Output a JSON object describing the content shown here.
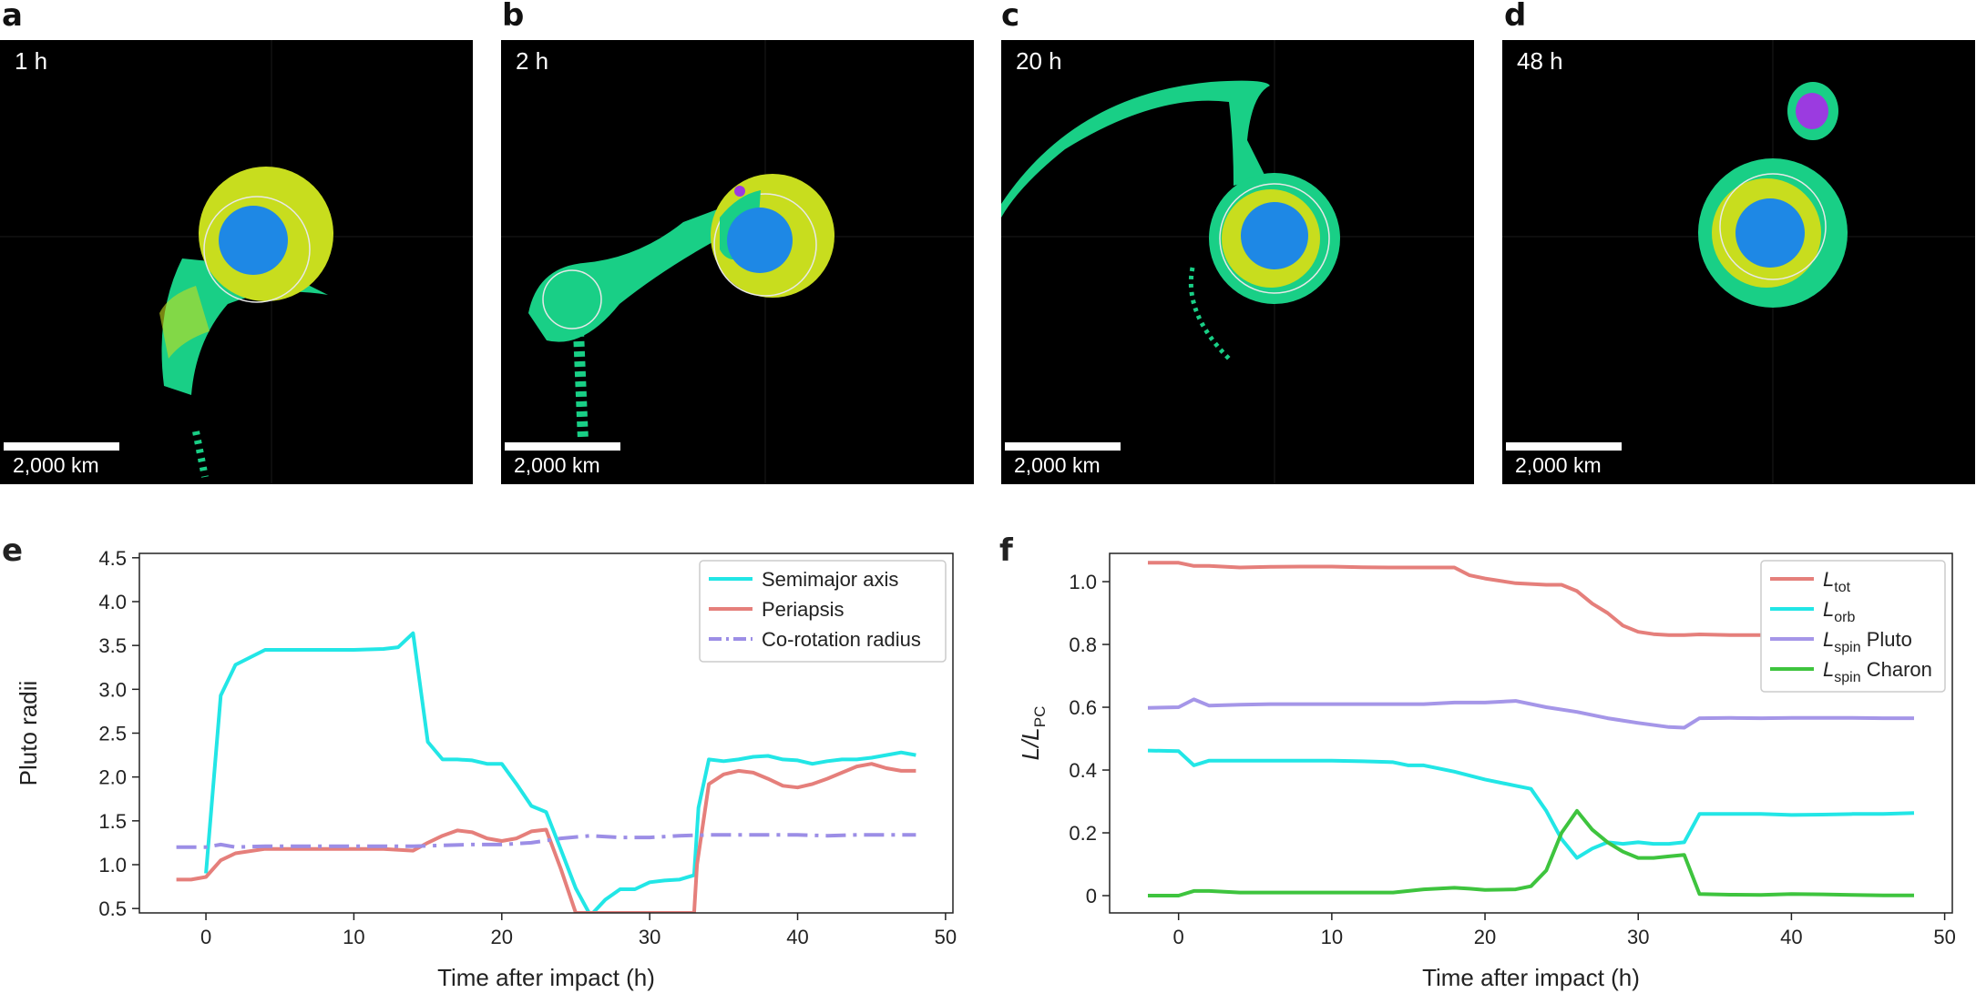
{
  "panels": [
    {
      "letter": "a",
      "time": "1 h",
      "scale": "2,000 km"
    },
    {
      "letter": "b",
      "time": "2 h",
      "scale": "2,000 km"
    },
    {
      "letter": "c",
      "time": "20 h",
      "scale": "2,000 km"
    },
    {
      "letter": "d",
      "time": "48 h",
      "scale": "2,000 km"
    }
  ],
  "sim_colors": {
    "background": "#000000",
    "core": "#1e88e5",
    "mantle": "#c8dd1e",
    "ice": "#19cf86",
    "rock": "#9b3be0"
  },
  "chart_data": [
    {
      "panel": "e",
      "type": "line",
      "xlabel": "Time after impact (h)",
      "ylabel": "Pluto radii",
      "xlim": [
        -4.5,
        50.5
      ],
      "ylim": [
        0.45,
        4.55
      ],
      "xticks": [
        0,
        10,
        20,
        30,
        40,
        50
      ],
      "xtick_labels": [
        "0",
        "10",
        "20",
        "30",
        "40",
        "50"
      ],
      "yticks": [
        0.5,
        1.0,
        1.5,
        2.0,
        2.5,
        3.0,
        3.5,
        4.0,
        4.5
      ],
      "ytick_labels": [
        "0.5",
        "1.0",
        "1.5",
        "2.0",
        "2.5",
        "3.0",
        "3.5",
        "4.0",
        "4.5"
      ],
      "legend": "top-right",
      "grid": false,
      "series": [
        {
          "name": "Semimajor axis",
          "color": "#22e6e6",
          "dash": "solid",
          "x": [
            0,
            1,
            2,
            4,
            6,
            8,
            10,
            12,
            13,
            14,
            15,
            16,
            17,
            18,
            19,
            20,
            21,
            22,
            23,
            24,
            25,
            26,
            27,
            28,
            29,
            30,
            31,
            32,
            33,
            33.3,
            34,
            35,
            36,
            37,
            38,
            39,
            40,
            41,
            42,
            43,
            44,
            45,
            46,
            47,
            48
          ],
          "y": [
            0.9,
            2.93,
            3.28,
            3.45,
            3.45,
            3.45,
            3.45,
            3.46,
            3.48,
            3.64,
            2.4,
            2.2,
            2.2,
            2.19,
            2.15,
            2.15,
            1.92,
            1.67,
            1.6,
            1.17,
            0.73,
            0.42,
            0.6,
            0.72,
            0.72,
            0.8,
            0.82,
            0.83,
            0.88,
            1.65,
            2.2,
            2.18,
            2.2,
            2.23,
            2.24,
            2.2,
            2.19,
            2.15,
            2.18,
            2.2,
            2.2,
            2.22,
            2.25,
            2.28,
            2.25
          ]
        },
        {
          "name": "Periapsis",
          "color": "#e57f7b",
          "dash": "solid",
          "x": [
            -2,
            -1,
            0,
            1,
            2,
            4,
            6,
            8,
            10,
            12,
            14,
            15,
            16,
            17,
            18,
            19,
            20,
            21,
            22,
            23,
            24,
            25,
            33,
            33.2,
            34,
            35,
            36,
            37,
            38,
            39,
            40,
            41,
            42,
            43,
            44,
            45,
            46,
            47,
            48
          ],
          "y": [
            0.83,
            0.83,
            0.86,
            1.05,
            1.13,
            1.18,
            1.18,
            1.18,
            1.18,
            1.18,
            1.16,
            1.25,
            1.33,
            1.39,
            1.37,
            1.3,
            1.27,
            1.3,
            1.38,
            1.4,
            0.95,
            0.45,
            0.45,
            1.0,
            1.92,
            2.03,
            2.07,
            2.05,
            1.98,
            1.9,
            1.88,
            1.92,
            1.98,
            2.05,
            2.12,
            2.15,
            2.1,
            2.07,
            2.07
          ]
        },
        {
          "name": "Co-rotation radius",
          "color": "#9c8ee6",
          "dash": "dashdot",
          "x": [
            -2,
            0,
            1,
            2,
            4,
            6,
            8,
            10,
            12,
            14,
            16,
            18,
            20,
            22,
            24,
            26,
            28,
            30,
            32,
            34,
            36,
            38,
            40,
            42,
            44,
            46,
            48
          ],
          "y": [
            1.2,
            1.2,
            1.23,
            1.2,
            1.21,
            1.21,
            1.21,
            1.21,
            1.21,
            1.21,
            1.22,
            1.23,
            1.23,
            1.25,
            1.3,
            1.33,
            1.31,
            1.31,
            1.33,
            1.34,
            1.34,
            1.34,
            1.34,
            1.33,
            1.34,
            1.34,
            1.34
          ]
        }
      ]
    },
    {
      "panel": "f",
      "type": "line",
      "xlabel": "Time after impact (h)",
      "ylabel_main": "L/L",
      "ylabel_sub": "PC",
      "xlim": [
        -4.5,
        50.5
      ],
      "ylim": [
        -0.055,
        1.09
      ],
      "xticks": [
        0,
        10,
        20,
        30,
        40,
        50
      ],
      "xtick_labels": [
        "0",
        "10",
        "20",
        "30",
        "40",
        "50"
      ],
      "yticks": [
        0,
        0.2,
        0.4,
        0.6,
        0.8,
        1.0
      ],
      "ytick_labels": [
        "0",
        "0.2",
        "0.4",
        "0.6",
        "0.8",
        "1.0"
      ],
      "legend": "top-right",
      "grid": false,
      "series": [
        {
          "name_main": "L",
          "name_sub": "tot",
          "name_suffix": "",
          "color": "#e57f7b",
          "x": [
            -2,
            0,
            1,
            2,
            4,
            6,
            8,
            10,
            12,
            14,
            16,
            18,
            19,
            20,
            22,
            24,
            25,
            26,
            27,
            28,
            29,
            30,
            31,
            32,
            33,
            34,
            36,
            38,
            40,
            42,
            44,
            46,
            48
          ],
          "y": [
            1.06,
            1.06,
            1.05,
            1.05,
            1.045,
            1.047,
            1.048,
            1.048,
            1.046,
            1.045,
            1.045,
            1.045,
            1.02,
            1.01,
            0.995,
            0.99,
            0.99,
            0.97,
            0.93,
            0.9,
            0.86,
            0.84,
            0.833,
            0.83,
            0.83,
            0.832,
            0.83,
            0.83,
            0.828,
            0.826,
            0.826,
            0.826,
            0.826
          ]
        },
        {
          "name_main": "L",
          "name_sub": "orb",
          "name_suffix": "",
          "color": "#22e6e6",
          "x": [
            -2,
            0,
            1,
            2,
            4,
            6,
            8,
            10,
            12,
            14,
            15,
            16,
            18,
            20,
            22,
            23,
            24,
            25,
            26,
            27,
            28,
            29,
            30,
            31,
            32,
            33,
            34,
            36,
            38,
            40,
            42,
            44,
            46,
            48
          ],
          "y": [
            0.462,
            0.46,
            0.415,
            0.43,
            0.43,
            0.43,
            0.43,
            0.43,
            0.428,
            0.425,
            0.415,
            0.415,
            0.395,
            0.37,
            0.35,
            0.34,
            0.27,
            0.18,
            0.12,
            0.15,
            0.17,
            0.165,
            0.17,
            0.165,
            0.165,
            0.17,
            0.26,
            0.26,
            0.26,
            0.257,
            0.258,
            0.26,
            0.26,
            0.263
          ]
        },
        {
          "name_main": "L",
          "name_sub": "spin",
          "name_suffix": " Pluto",
          "color": "#a596e8",
          "x": [
            -2,
            0,
            1,
            2,
            4,
            6,
            8,
            10,
            12,
            14,
            16,
            18,
            20,
            22,
            24,
            26,
            28,
            30,
            32,
            33,
            34,
            36,
            38,
            40,
            42,
            44,
            46,
            48
          ],
          "y": [
            0.598,
            0.6,
            0.625,
            0.605,
            0.608,
            0.61,
            0.61,
            0.61,
            0.61,
            0.61,
            0.61,
            0.615,
            0.615,
            0.62,
            0.6,
            0.585,
            0.565,
            0.55,
            0.537,
            0.535,
            0.565,
            0.566,
            0.565,
            0.566,
            0.566,
            0.566,
            0.565,
            0.565
          ]
        },
        {
          "name_main": "L",
          "name_sub": "spin",
          "name_suffix": " Charon",
          "color": "#3ec43e",
          "x": [
            -2,
            0,
            1,
            2,
            4,
            6,
            8,
            10,
            12,
            14,
            16,
            18,
            19,
            20,
            22,
            23,
            24,
            25,
            26,
            27,
            28,
            29,
            30,
            31,
            32,
            33,
            34,
            36,
            38,
            40,
            42,
            44,
            46,
            48
          ],
          "y": [
            0.0,
            0.0,
            0.015,
            0.015,
            0.01,
            0.01,
            0.01,
            0.01,
            0.01,
            0.01,
            0.02,
            0.025,
            0.022,
            0.018,
            0.02,
            0.03,
            0.08,
            0.2,
            0.27,
            0.21,
            0.17,
            0.14,
            0.12,
            0.12,
            0.125,
            0.13,
            0.005,
            0.003,
            0.002,
            0.005,
            0.004,
            0.002,
            0.001,
            0.001
          ]
        }
      ]
    }
  ]
}
